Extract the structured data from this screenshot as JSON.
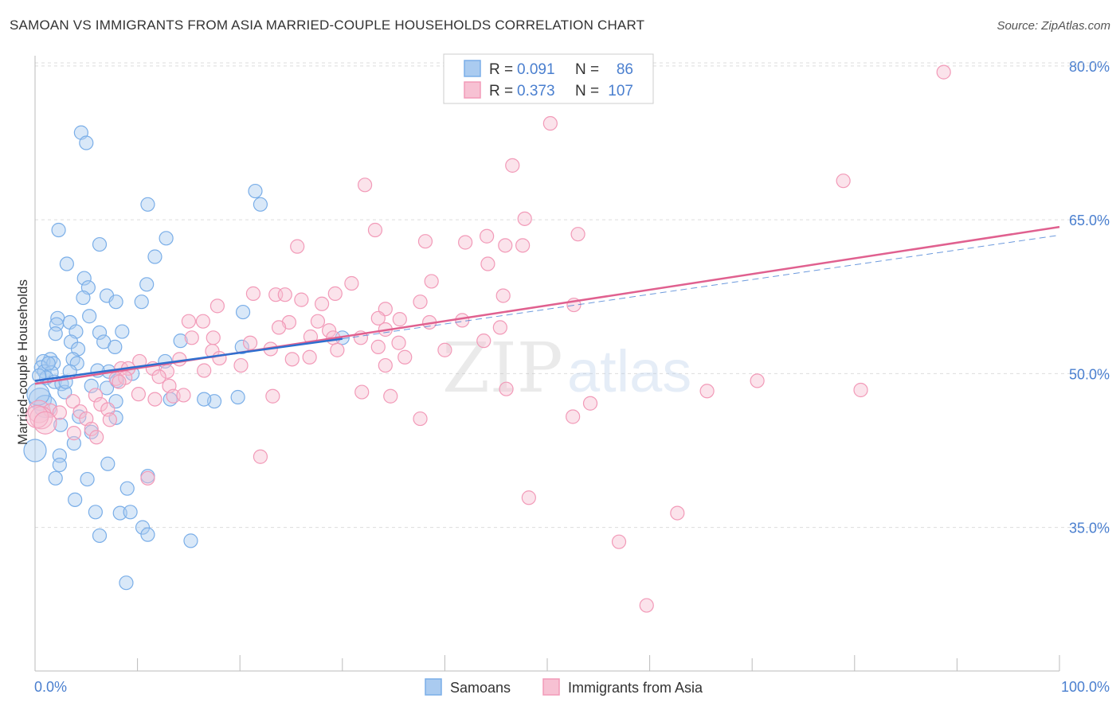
{
  "title": "SAMOAN VS IMMIGRANTS FROM ASIA MARRIED-COUPLE HOUSEHOLDS CORRELATION CHART",
  "source": "Source: ZipAtlas.com",
  "watermark": {
    "zip": "ZIP",
    "atlas": "atlas"
  },
  "colors": {
    "blue": "#7aaee8",
    "blue_fill": "#aacbf0",
    "blue_line": "#2f6fcf",
    "pink": "#f29ab8",
    "pink_fill": "#f7c1d3",
    "pink_line": "#e0608f",
    "axis_label": "#4a7fcf",
    "grid": "#dddddd"
  },
  "legend": {
    "r_label": "R =",
    "n_label": "N =",
    "rows": [
      {
        "series": "Samoans",
        "r": "0.091",
        "n": "86"
      },
      {
        "series": "Immigrants from Asia",
        "r": "0.373",
        "n": "107"
      }
    ]
  },
  "chart_data": {
    "type": "scatter",
    "ylabel": "Married-couple Households",
    "xlim": [
      0,
      100
    ],
    "ylim": [
      21,
      81
    ],
    "x_tick_labels": [
      "0.0%",
      "100.0%"
    ],
    "y_ticks": [
      35,
      50,
      65,
      80
    ],
    "y_tick_labels": [
      "35.0%",
      "50.0%",
      "65.0%",
      "80.0%"
    ],
    "bottom_legend": [
      "Samoans",
      "Immigrants from Asia"
    ],
    "series": [
      {
        "name": "Samoans",
        "trend": {
          "x": [
            0,
            30
          ],
          "y": [
            49.3,
            53.4
          ]
        },
        "trend_dashed": {
          "x": [
            30,
            100
          ],
          "y": [
            53.4,
            63.5
          ]
        },
        "points": [
          [
            4.5,
            73.5
          ],
          [
            5.0,
            72.5
          ],
          [
            2.3,
            64.0
          ],
          [
            11.0,
            66.5
          ],
          [
            21.5,
            67.8
          ],
          [
            22.0,
            66.5
          ],
          [
            12.8,
            63.2
          ],
          [
            6.3,
            62.6
          ],
          [
            11.7,
            61.4
          ],
          [
            3.1,
            60.7
          ],
          [
            4.8,
            59.3
          ],
          [
            10.9,
            58.7
          ],
          [
            5.2,
            58.4
          ],
          [
            7.0,
            57.6
          ],
          [
            4.7,
            57.4
          ],
          [
            7.9,
            57.0
          ],
          [
            10.4,
            57.0
          ],
          [
            20.3,
            56.0
          ],
          [
            2.2,
            55.4
          ],
          [
            5.3,
            55.6
          ],
          [
            2.1,
            54.8
          ],
          [
            3.4,
            55.0
          ],
          [
            4.0,
            54.1
          ],
          [
            6.3,
            54.0
          ],
          [
            8.5,
            54.1
          ],
          [
            14.2,
            53.2
          ],
          [
            2.0,
            53.9
          ],
          [
            6.7,
            53.1
          ],
          [
            3.5,
            53.1
          ],
          [
            7.8,
            52.6
          ],
          [
            4.2,
            52.4
          ],
          [
            1.5,
            51.4
          ],
          [
            0.8,
            51.2
          ],
          [
            3.7,
            51.4
          ],
          [
            1.8,
            51.0
          ],
          [
            4.1,
            51.0
          ],
          [
            0.6,
            50.6
          ],
          [
            0.9,
            50.2
          ],
          [
            1.6,
            50.1
          ],
          [
            3.4,
            50.2
          ],
          [
            7.2,
            50.2
          ],
          [
            9.5,
            50.0
          ],
          [
            1.1,
            49.6
          ],
          [
            0.4,
            49.8
          ],
          [
            1.9,
            49.2
          ],
          [
            2.6,
            49.0
          ],
          [
            5.5,
            48.8
          ],
          [
            7.0,
            48.6
          ],
          [
            2.9,
            48.2
          ],
          [
            0.5,
            47.5
          ],
          [
            7.9,
            47.3
          ],
          [
            13.2,
            47.5
          ],
          [
            17.5,
            47.3
          ],
          [
            19.8,
            47.7
          ],
          [
            1.0,
            46.8
          ],
          [
            2.5,
            45.0
          ],
          [
            4.3,
            45.8
          ],
          [
            7.9,
            45.7
          ],
          [
            5.5,
            44.3
          ],
          [
            3.8,
            43.2
          ],
          [
            0.0,
            42.5
          ],
          [
            2.4,
            42.0
          ],
          [
            2.4,
            41.1
          ],
          [
            7.1,
            41.2
          ],
          [
            2.0,
            39.8
          ],
          [
            5.1,
            39.7
          ],
          [
            11.0,
            40.0
          ],
          [
            9.0,
            38.8
          ],
          [
            3.9,
            37.7
          ],
          [
            5.9,
            36.5
          ],
          [
            8.3,
            36.4
          ],
          [
            9.3,
            36.5
          ],
          [
            10.5,
            35.0
          ],
          [
            11.0,
            34.3
          ],
          [
            6.3,
            34.2
          ],
          [
            15.2,
            33.7
          ],
          [
            8.9,
            29.6
          ],
          [
            30.0,
            53.5
          ],
          [
            20.2,
            52.6
          ],
          [
            0.3,
            48.0
          ],
          [
            1.3,
            51.0
          ],
          [
            3.0,
            49.2
          ],
          [
            6.1,
            50.3
          ],
          [
            12.7,
            51.2
          ],
          [
            16.5,
            47.5
          ],
          [
            8.0,
            49.3
          ]
        ]
      },
      {
        "name": "Immigrants from Asia",
        "trend": {
          "x": [
            0,
            100
          ],
          "y": [
            49.0,
            64.3
          ]
        },
        "points": [
          [
            88.7,
            79.4
          ],
          [
            50.3,
            74.4
          ],
          [
            46.6,
            70.3
          ],
          [
            78.9,
            68.8
          ],
          [
            32.2,
            68.4
          ],
          [
            47.8,
            65.1
          ],
          [
            33.2,
            64.0
          ],
          [
            53.0,
            63.6
          ],
          [
            44.1,
            63.4
          ],
          [
            38.1,
            62.9
          ],
          [
            42.0,
            62.8
          ],
          [
            45.9,
            62.5
          ],
          [
            47.6,
            62.5
          ],
          [
            25.6,
            62.4
          ],
          [
            44.2,
            60.7
          ],
          [
            30.9,
            58.8
          ],
          [
            38.7,
            59.0
          ],
          [
            21.3,
            57.8
          ],
          [
            23.5,
            57.7
          ],
          [
            24.4,
            57.7
          ],
          [
            29.3,
            57.8
          ],
          [
            26.0,
            57.2
          ],
          [
            37.6,
            57.0
          ],
          [
            45.7,
            57.6
          ],
          [
            17.8,
            56.6
          ],
          [
            28.0,
            56.8
          ],
          [
            34.2,
            56.3
          ],
          [
            52.6,
            56.7
          ],
          [
            15.0,
            55.1
          ],
          [
            16.4,
            55.1
          ],
          [
            27.6,
            55.1
          ],
          [
            24.8,
            55.0
          ],
          [
            38.5,
            55.0
          ],
          [
            33.5,
            55.4
          ],
          [
            35.6,
            55.3
          ],
          [
            41.7,
            55.2
          ],
          [
            45.4,
            54.5
          ],
          [
            28.7,
            54.2
          ],
          [
            34.2,
            54.3
          ],
          [
            23.8,
            54.5
          ],
          [
            15.3,
            53.5
          ],
          [
            17.4,
            53.5
          ],
          [
            26.9,
            53.6
          ],
          [
            29.1,
            53.5
          ],
          [
            31.8,
            53.5
          ],
          [
            21.0,
            53.0
          ],
          [
            33.5,
            52.6
          ],
          [
            35.5,
            53.0
          ],
          [
            43.8,
            53.2
          ],
          [
            29.5,
            52.3
          ],
          [
            40.0,
            52.3
          ],
          [
            17.3,
            52.2
          ],
          [
            23.0,
            52.4
          ],
          [
            14.1,
            51.4
          ],
          [
            18.0,
            51.5
          ],
          [
            26.8,
            51.6
          ],
          [
            36.1,
            51.6
          ],
          [
            25.1,
            51.4
          ],
          [
            34.2,
            50.8
          ],
          [
            20.1,
            50.8
          ],
          [
            8.4,
            50.5
          ],
          [
            9.1,
            50.5
          ],
          [
            10.2,
            51.2
          ],
          [
            11.5,
            50.5
          ],
          [
            12.9,
            50.2
          ],
          [
            16.5,
            50.3
          ],
          [
            7.9,
            49.5
          ],
          [
            8.8,
            49.6
          ],
          [
            12.1,
            49.7
          ],
          [
            13.1,
            48.8
          ],
          [
            10.1,
            48.0
          ],
          [
            13.5,
            47.8
          ],
          [
            14.5,
            47.9
          ],
          [
            11.7,
            47.5
          ],
          [
            23.2,
            47.8
          ],
          [
            34.7,
            47.8
          ],
          [
            31.9,
            48.2
          ],
          [
            46.0,
            48.5
          ],
          [
            5.9,
            47.9
          ],
          [
            3.7,
            47.3
          ],
          [
            6.4,
            47.0
          ],
          [
            7.1,
            46.5
          ],
          [
            0.4,
            46.3
          ],
          [
            1.5,
            46.4
          ],
          [
            2.4,
            46.2
          ],
          [
            0.6,
            45.7
          ],
          [
            4.4,
            46.3
          ],
          [
            5.0,
            45.6
          ],
          [
            5.5,
            44.6
          ],
          [
            3.8,
            44.2
          ],
          [
            0.2,
            45.8
          ],
          [
            1.0,
            45.2
          ],
          [
            6.0,
            43.8
          ],
          [
            7.3,
            45.5
          ],
          [
            37.6,
            45.6
          ],
          [
            54.2,
            47.1
          ],
          [
            52.5,
            45.8
          ],
          [
            22.0,
            41.9
          ],
          [
            11.0,
            39.8
          ],
          [
            48.2,
            37.9
          ],
          [
            62.7,
            36.4
          ],
          [
            57.0,
            33.6
          ],
          [
            59.7,
            27.4
          ],
          [
            65.6,
            48.3
          ],
          [
            70.5,
            49.3
          ],
          [
            80.6,
            48.4
          ],
          [
            8.2,
            49.2
          ]
        ]
      }
    ]
  }
}
